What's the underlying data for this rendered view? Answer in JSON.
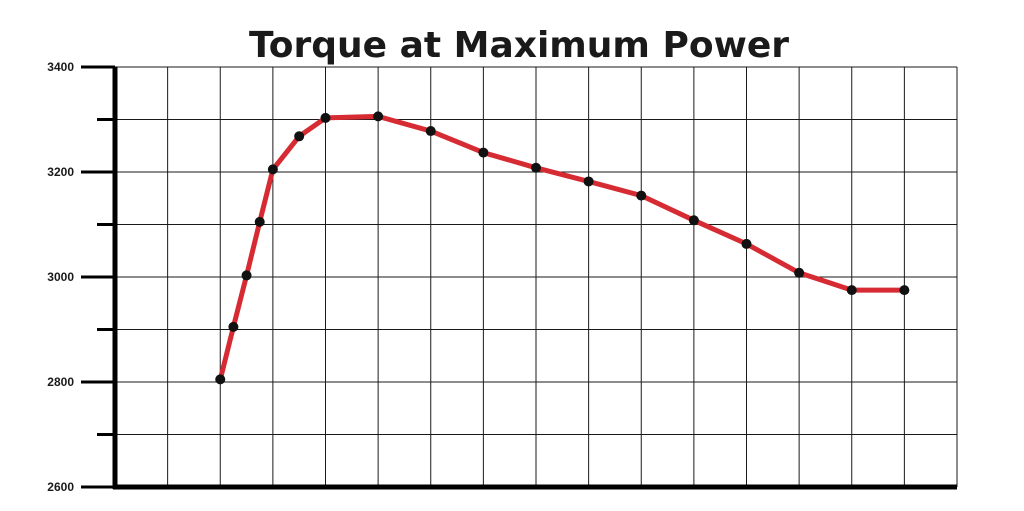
{
  "chart_data": {
    "type": "line",
    "title": "Torque at Maximum Power",
    "xlabel": "",
    "ylabel": "",
    "ylim": [
      2600,
      3400
    ],
    "yticks": [
      2600,
      2800,
      3000,
      3200,
      3400
    ],
    "grid": true,
    "x": [
      2,
      2.25,
      2.5,
      2.75,
      3,
      3.5,
      4,
      5,
      6,
      7,
      8,
      9,
      10,
      11,
      12,
      13,
      14,
      15
    ],
    "series": [
      {
        "values": [
          2805,
          2905,
          3003,
          3105,
          3205,
          3268,
          3303,
          3306,
          3278,
          3237,
          3208,
          3182,
          3155,
          3108,
          3063,
          3008,
          2975,
          2975
        ],
        "color": "#d62b33",
        "markers": true
      }
    ],
    "xlim": [
      0,
      16
    ],
    "x_gridlines": [
      0,
      1,
      2,
      3,
      4,
      5,
      6,
      7,
      8,
      9,
      10,
      11,
      12,
      13,
      14,
      15,
      16
    ]
  }
}
